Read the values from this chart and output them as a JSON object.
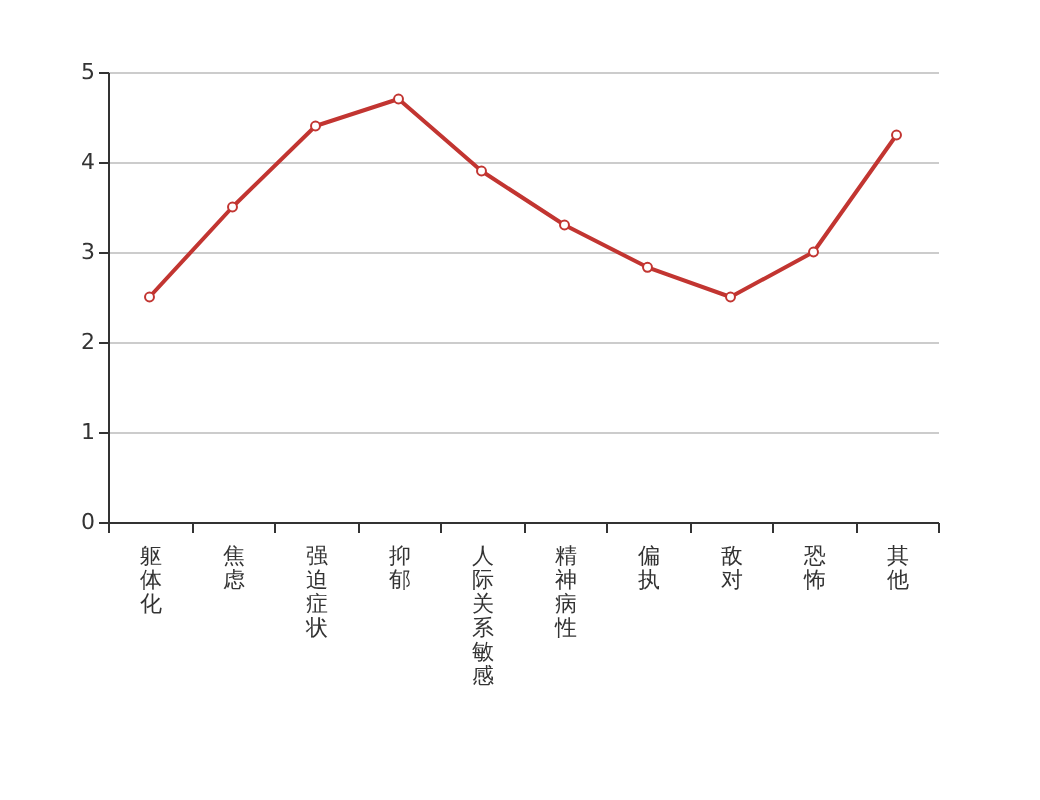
{
  "chart_data": {
    "type": "line",
    "categories": [
      "躯体化",
      "焦虑",
      "强迫症状",
      "抑郁",
      "人际关系敏感",
      "精神病性",
      "偏执",
      "敌对",
      "恐怖",
      "其他"
    ],
    "series": [
      {
        "color": "#c23531",
        "values": [
          2.5,
          3.5,
          4.4,
          4.7,
          3.9,
          3.3,
          2.83,
          2.5,
          3.0,
          4.3
        ]
      }
    ],
    "ylim": [
      0,
      5
    ],
    "yticks": [
      0,
      1,
      2,
      3,
      4,
      5
    ],
    "grid": "y",
    "marker": "circle",
    "line_style": "solid"
  }
}
